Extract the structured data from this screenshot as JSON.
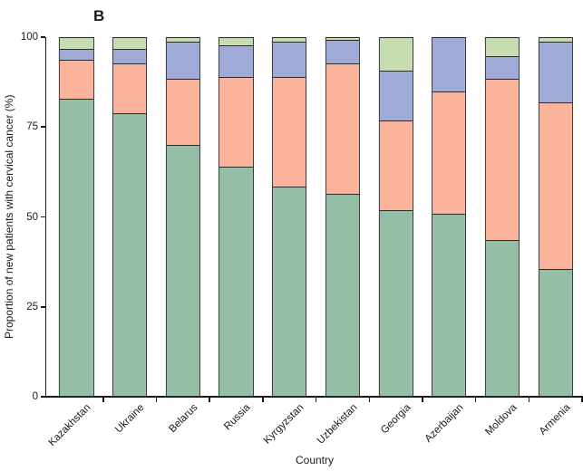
{
  "panel_label": "B",
  "axes": {
    "y_label": "Proportion of new patients with cervical cancer (%)",
    "x_label": "Country",
    "y_ticks": [
      0,
      25,
      50,
      75,
      100
    ],
    "y_range": [
      0,
      100
    ]
  },
  "colors": {
    "segment_green": "#94bfa6",
    "segment_salmon": "#f9b49b",
    "segment_blue": "#9fabd6",
    "segment_light_green": "#c6ddb2",
    "outline": "#2b2b2b",
    "axis": "#1a1a1a",
    "background": "#ffffff"
  },
  "chart_data": {
    "type": "bar",
    "stacked": true,
    "orientation": "vertical",
    "grid": false,
    "legend": "none",
    "title": "",
    "xlabel": "Country",
    "ylabel": "Proportion of new patients with cervical cancer (%)",
    "ylim": [
      0,
      100
    ],
    "categories": [
      "Kazakhstan",
      "Ukraine",
      "Belarus",
      "Russia",
      "Kyrgyzstan",
      "Uzbekistan",
      "Georgia",
      "Azerbaijan",
      "Moldova",
      "Armenia"
    ],
    "series": [
      {
        "name": "green",
        "color": "#94bfa6",
        "values": [
          83,
          79,
          70,
          64,
          58.5,
          56.5,
          52,
          51,
          43.5,
          35.5
        ]
      },
      {
        "name": "salmon",
        "color": "#f9b49b",
        "values": [
          11,
          14,
          18.5,
          25,
          30.5,
          36.5,
          25,
          34,
          45,
          46.5
        ]
      },
      {
        "name": "blue",
        "color": "#9fabd6",
        "values": [
          3,
          4,
          10.5,
          9,
          10,
          6.5,
          14,
          15,
          6.5,
          17
        ]
      },
      {
        "name": "light-green",
        "color": "#c6ddb2",
        "values": [
          3,
          3,
          1,
          2,
          1,
          0.5,
          9,
          0,
          5,
          1
        ]
      }
    ],
    "cumulative_tops_pct": {
      "Kazakhstan": [
        83,
        94,
        97,
        100
      ],
      "Ukraine": [
        79,
        93,
        97,
        100
      ],
      "Belarus": [
        70,
        88.5,
        99,
        100
      ],
      "Russia": [
        64,
        89,
        98,
        100
      ],
      "Kyrgyzstan": [
        58.5,
        89,
        99,
        100
      ],
      "Uzbekistan": [
        56.5,
        93,
        99.5,
        100
      ],
      "Georgia": [
        52,
        77,
        91,
        100
      ],
      "Azerbaijan": [
        51,
        85,
        100,
        100
      ],
      "Moldova": [
        43.5,
        88.5,
        95,
        100
      ],
      "Armenia": [
        35.5,
        82,
        99,
        100
      ]
    }
  }
}
